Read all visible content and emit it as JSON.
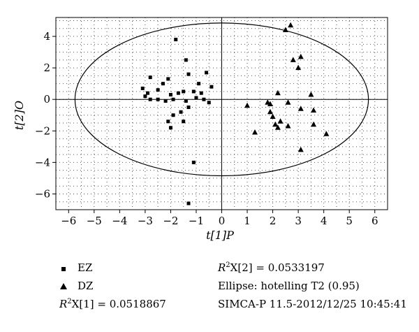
{
  "chart_data": {
    "type": "scatter",
    "xlabel": "t[1]P",
    "ylabel": "t[2]O",
    "xlim": [
      -6.5,
      6.5
    ],
    "ylim": [
      -7,
      5.2
    ],
    "x_ticks": [
      -6,
      -5,
      -4,
      -3,
      -2,
      -1,
      0,
      1,
      2,
      3,
      4,
      5,
      6
    ],
    "y_ticks": [
      -6,
      -4,
      -2,
      0,
      2,
      4
    ],
    "grid": "dotted",
    "ellipse": {
      "center": [
        0,
        0
      ],
      "semi_x": 5.75,
      "semi_y": 4.85,
      "label": "Ellipse: hotelling T2 (0.95)"
    },
    "series": [
      {
        "name": "EZ",
        "marker": "square",
        "points": [
          [
            -1.8,
            3.8
          ],
          [
            -1.4,
            2.5
          ],
          [
            -1.3,
            1.6
          ],
          [
            -0.6,
            1.7
          ],
          [
            -2.8,
            1.4
          ],
          [
            -2.1,
            1.3
          ],
          [
            -2.3,
            1.0
          ],
          [
            -0.9,
            1.0
          ],
          [
            -0.4,
            0.8
          ],
          [
            -3.1,
            0.7
          ],
          [
            -2.5,
            0.6
          ],
          [
            -1.7,
            0.4
          ],
          [
            -2.9,
            0.4
          ],
          [
            -1.5,
            0.5
          ],
          [
            -2.0,
            0.3
          ],
          [
            -1.1,
            0.5
          ],
          [
            -0.8,
            0.4
          ],
          [
            -3.0,
            0.2
          ],
          [
            -2.8,
            0.0
          ],
          [
            -2.5,
            0.0
          ],
          [
            -1.9,
            0.0
          ],
          [
            -1.0,
            0.1
          ],
          [
            -0.7,
            0.0
          ],
          [
            -2.2,
            -0.1
          ],
          [
            -1.4,
            -0.1
          ],
          [
            -0.5,
            -0.2
          ],
          [
            -1.3,
            -0.5
          ],
          [
            -1.6,
            -0.8
          ],
          [
            -1.9,
            -1.0
          ],
          [
            -1.5,
            -1.4
          ],
          [
            -2.1,
            -1.4
          ],
          [
            -2.0,
            -1.8
          ],
          [
            -1.1,
            -4.0
          ],
          [
            -1.3,
            -6.6
          ]
        ]
      },
      {
        "name": "DZ",
        "marker": "triangle",
        "points": [
          [
            2.7,
            4.7
          ],
          [
            2.5,
            4.4
          ],
          [
            3.1,
            2.7
          ],
          [
            2.8,
            2.5
          ],
          [
            3.0,
            2.0
          ],
          [
            2.2,
            0.4
          ],
          [
            3.5,
            0.3
          ],
          [
            2.6,
            -0.2
          ],
          [
            1.0,
            -0.4
          ],
          [
            1.8,
            -0.2
          ],
          [
            1.9,
            -0.3
          ],
          [
            3.1,
            -0.6
          ],
          [
            3.6,
            -0.7
          ],
          [
            1.9,
            -0.8
          ],
          [
            2.0,
            -1.1
          ],
          [
            2.3,
            -1.4
          ],
          [
            2.1,
            -1.6
          ],
          [
            2.6,
            -1.7
          ],
          [
            2.2,
            -1.8
          ],
          [
            1.3,
            -2.1
          ],
          [
            3.6,
            -1.6
          ],
          [
            4.1,
            -2.2
          ],
          [
            3.1,
            -3.2
          ]
        ]
      }
    ],
    "stats": {
      "r2x1_label": "R",
      "r2x1_sup": "2",
      "r2x1_sub": "X[1] = 0.0518867",
      "r2x2_label": "R",
      "r2x2_sup": "2",
      "r2x2_sub": "X[2] = 0.0533197"
    },
    "software": "SIMCA-P 11.5-2012/12/25 10:45:41"
  }
}
